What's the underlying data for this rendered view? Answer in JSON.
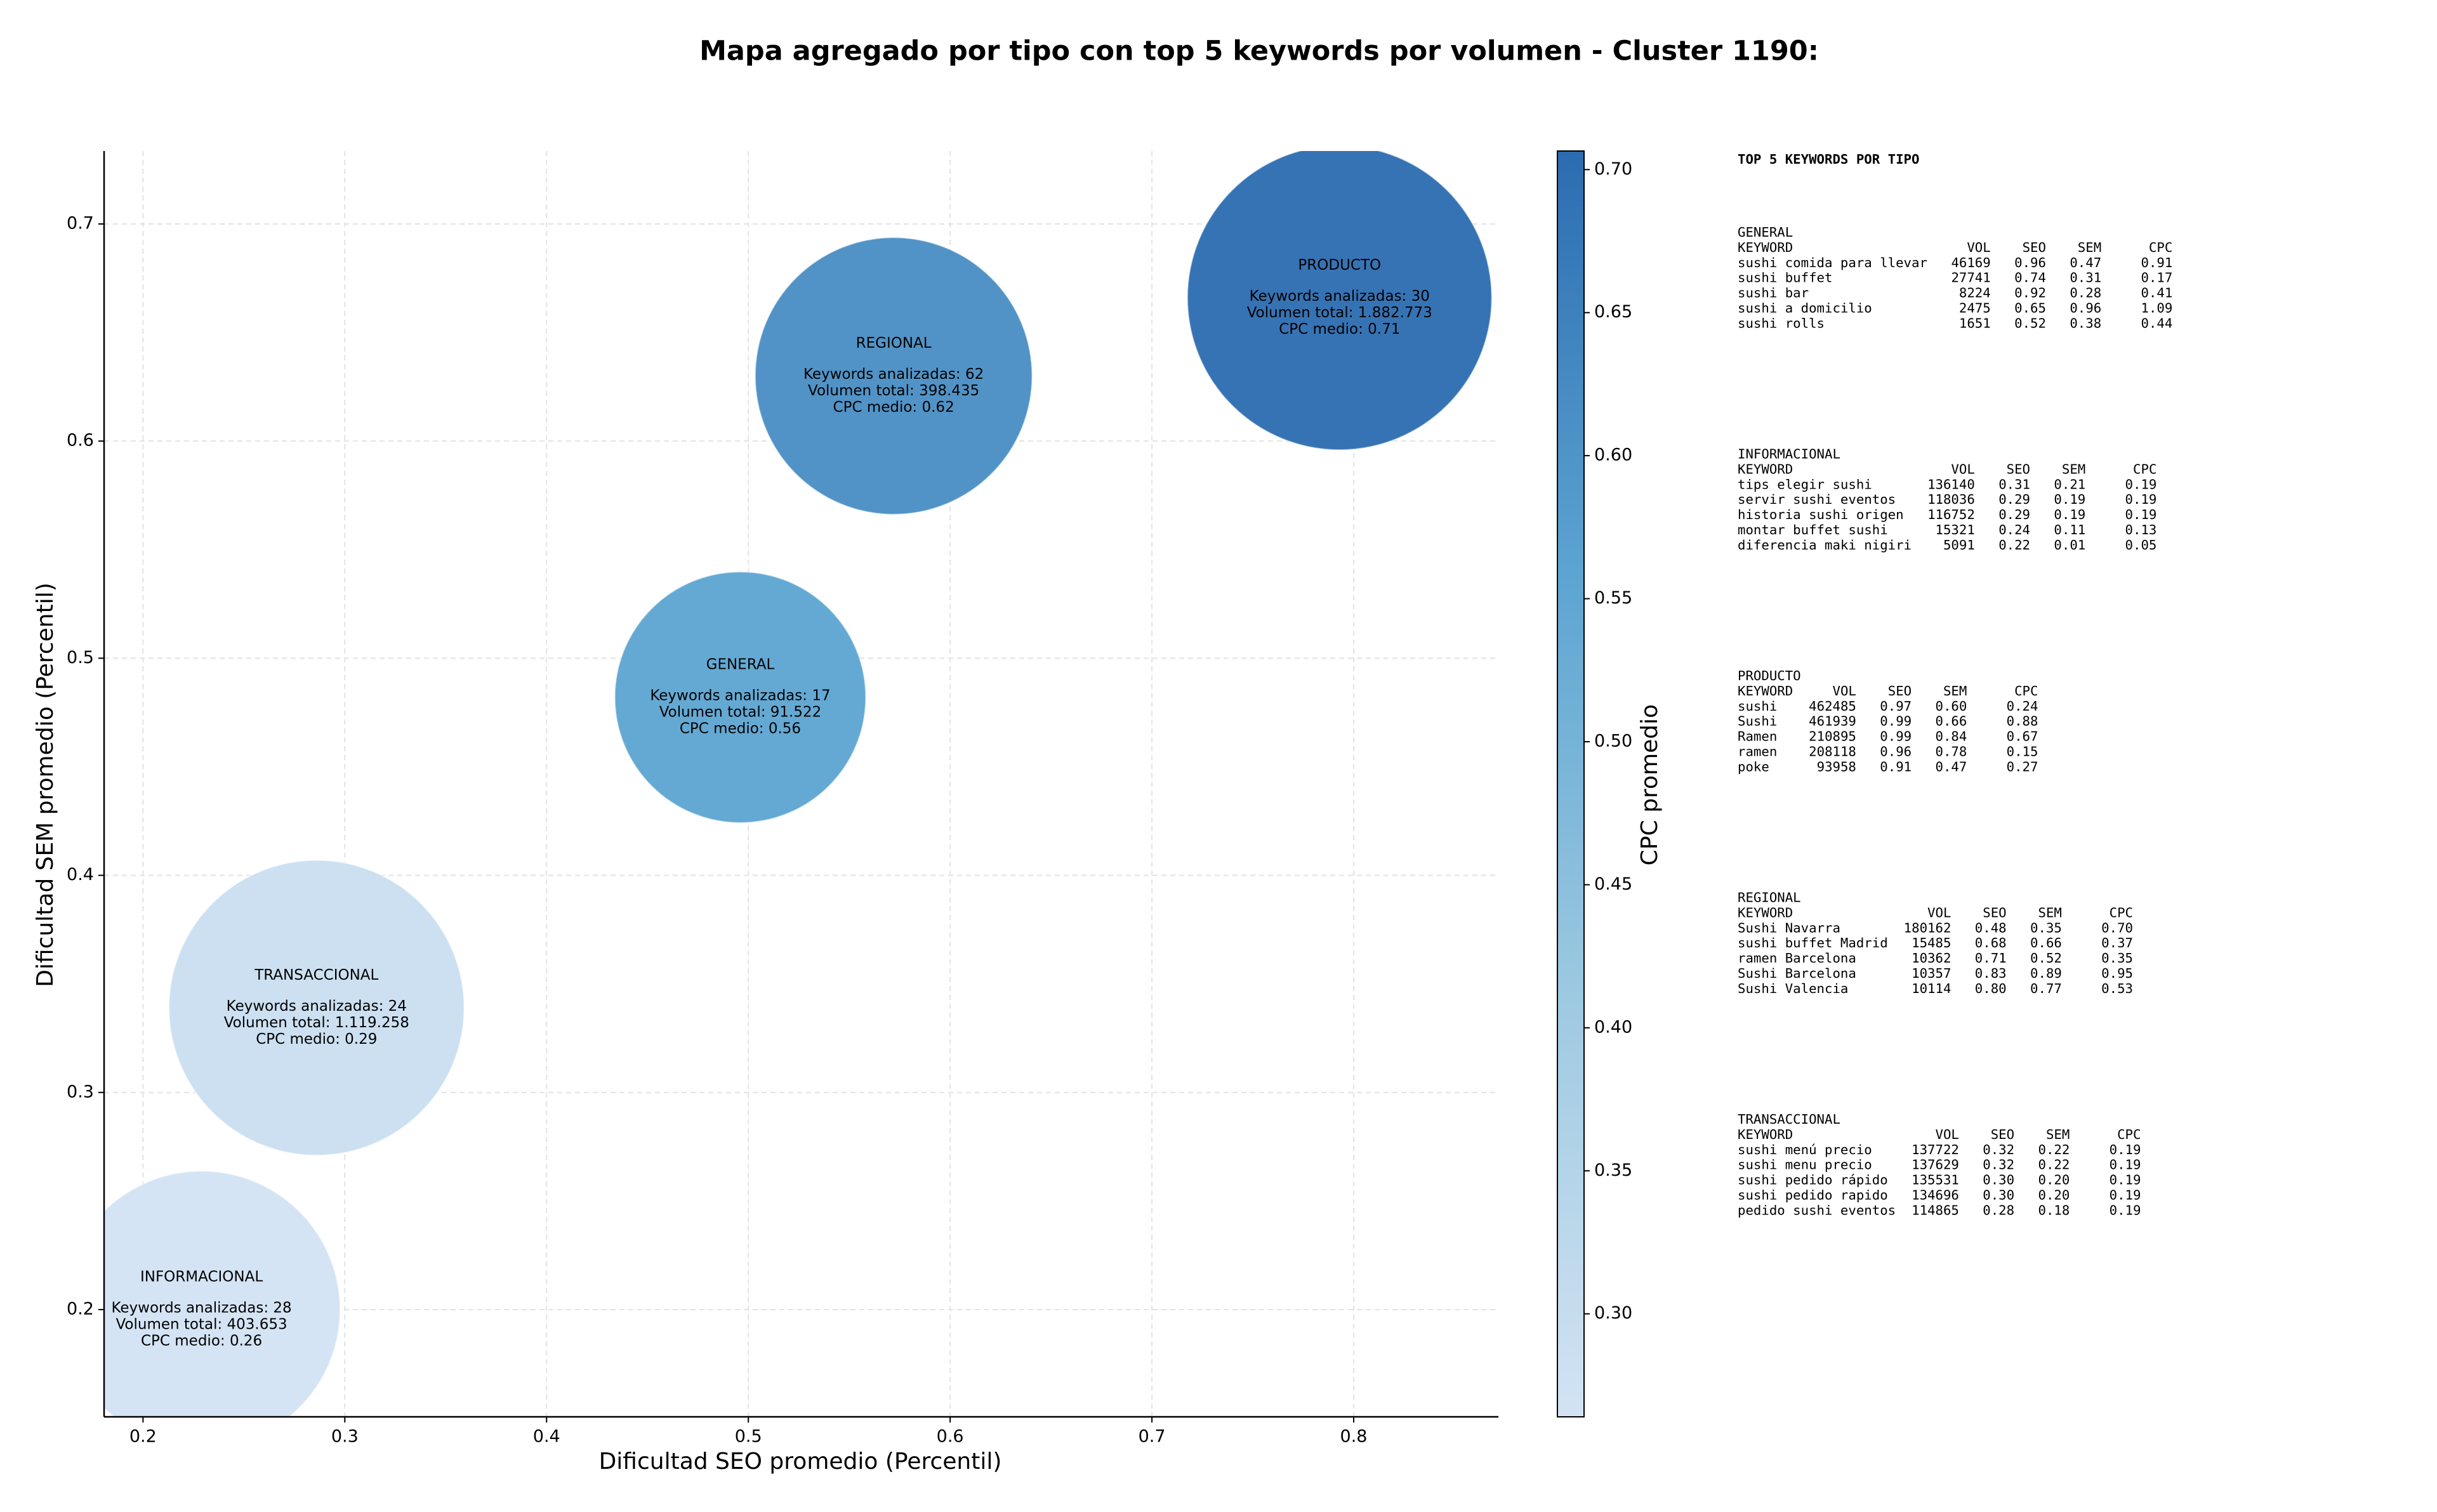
{
  "chart_data": {
    "type": "bubble",
    "title": "Mapa agregado por tipo con top 5 keywords por volumen - Cluster 1190:",
    "x_label": "Dificultad SEO promedio (Percentil)",
    "y_label": "Dificultad SEM promedio (Percentil)",
    "categories": [
      "INFORMACIONAL",
      "TRANSACCIONAL",
      "GENERAL",
      "REGIONAL",
      "PRODUCTO"
    ],
    "x": [
      0.229,
      0.286,
      0.496,
      0.572,
      0.793
    ],
    "values": [
      0.2,
      0.339,
      0.482,
      0.63,
      0.666
    ],
    "sizes": [
      403653,
      1119258,
      91522,
      398435,
      1882773
    ],
    "size_labels": [
      "Volumen total: 403.653",
      "Volumen total: 1.119.258",
      "Volumen total: 91.522",
      "Volumen total: 398.435",
      "Volumen total: 1.882.773"
    ],
    "count_labels": [
      "Keywords analizadas: 28",
      "Keywords analizadas: 24",
      "Keywords analizadas: 17",
      "Keywords analizadas: 62",
      "Keywords analizadas: 30"
    ],
    "color_values": [
      0.264,
      0.29,
      0.56,
      0.62,
      0.7065
    ],
    "color_labels": [
      "CPC medio: 0.26",
      "CPC medio: 0.29",
      "CPC medio: 0.56",
      "CPC medio: 0.62",
      "CPC medio: 0.71"
    ],
    "colormap": [
      "#d3e3f3",
      "#9dc9e1",
      "#5ca4d1",
      "#2b6cb0"
    ],
    "colorbar_label": "CPC promedio",
    "clim": [
      0.264,
      0.7065
    ],
    "cticks": [
      {
        "value": 0.3,
        "label": "0.30"
      },
      {
        "value": 0.35,
        "label": "0.35"
      },
      {
        "value": 0.4,
        "label": "0.40"
      },
      {
        "value": 0.45,
        "label": "0.45"
      },
      {
        "value": 0.5,
        "label": "0.50"
      },
      {
        "value": 0.55,
        "label": "0.55"
      },
      {
        "value": 0.6,
        "label": "0.60"
      },
      {
        "value": 0.65,
        "label": "0.65"
      },
      {
        "value": 0.7,
        "label": "0.70"
      }
    ],
    "xlim": [
      0.1807,
      0.8717
    ],
    "ylim": [
      0.1506,
      0.7336
    ],
    "xticks": [
      0.2,
      0.3,
      0.4,
      0.5,
      0.6,
      0.7,
      0.8
    ],
    "yticks": [
      0.2,
      0.3,
      0.4,
      0.5,
      0.6,
      0.7
    ],
    "grid": true
  },
  "keyword_panel": {
    "title": "TOP 5 KEYWORDS POR TIPO",
    "columns": [
      "KEYWORD",
      "VOL",
      "SEO",
      "SEM",
      "CPC"
    ],
    "groups": [
      {
        "name": "GENERAL",
        "rows": [
          [
            "sushi comida para llevar",
            "46169",
            "0.96",
            "0.47",
            "0.91"
          ],
          [
            "sushi buffet",
            "27741",
            "0.74",
            "0.31",
            "0.17"
          ],
          [
            "sushi bar",
            "8224",
            "0.92",
            "0.28",
            "0.41"
          ],
          [
            "sushi a domicilio",
            "2475",
            "0.65",
            "0.96",
            "1.09"
          ],
          [
            "sushi rolls",
            "1651",
            "0.52",
            "0.38",
            "0.44"
          ]
        ]
      },
      {
        "name": "INFORMACIONAL",
        "rows": [
          [
            "tips elegir sushi",
            "136140",
            "0.31",
            "0.21",
            "0.19"
          ],
          [
            "servir sushi eventos",
            "118036",
            "0.29",
            "0.19",
            "0.19"
          ],
          [
            "historia sushi origen",
            "116752",
            "0.29",
            "0.19",
            "0.19"
          ],
          [
            "montar buffet sushi",
            "15321",
            "0.24",
            "0.11",
            "0.13"
          ],
          [
            "diferencia maki nigiri",
            "5091",
            "0.22",
            "0.01",
            "0.05"
          ]
        ]
      },
      {
        "name": "PRODUCTO",
        "rows": [
          [
            "sushi",
            "462485",
            "0.97",
            "0.60",
            "0.24"
          ],
          [
            "Sushi",
            "461939",
            "0.99",
            "0.66",
            "0.88"
          ],
          [
            "Ramen",
            "210895",
            "0.99",
            "0.84",
            "0.67"
          ],
          [
            "ramen",
            "208118",
            "0.96",
            "0.78",
            "0.15"
          ],
          [
            "poke",
            "93958",
            "0.91",
            "0.47",
            "0.27"
          ]
        ]
      },
      {
        "name": "REGIONAL",
        "rows": [
          [
            "Sushi Navarra",
            "180162",
            "0.48",
            "0.35",
            "0.70"
          ],
          [
            "sushi buffet Madrid",
            "15485",
            "0.68",
            "0.66",
            "0.37"
          ],
          [
            "ramen Barcelona",
            "10362",
            "0.71",
            "0.52",
            "0.35"
          ],
          [
            "Sushi Barcelona",
            "10357",
            "0.83",
            "0.89",
            "0.95"
          ],
          [
            "Sushi Valencia",
            "10114",
            "0.80",
            "0.77",
            "0.53"
          ]
        ]
      },
      {
        "name": "TRANSACCIONAL",
        "rows": [
          [
            "sushi menú precio",
            "137722",
            "0.32",
            "0.22",
            "0.19"
          ],
          [
            "sushi menu precio",
            "137629",
            "0.32",
            "0.22",
            "0.19"
          ],
          [
            "sushi pedido rápido",
            "135531",
            "0.30",
            "0.20",
            "0.19"
          ],
          [
            "sushi pedido rapido",
            "134696",
            "0.30",
            "0.20",
            "0.19"
          ],
          [
            "pedido sushi eventos",
            "114865",
            "0.28",
            "0.18",
            "0.19"
          ]
        ]
      }
    ]
  }
}
